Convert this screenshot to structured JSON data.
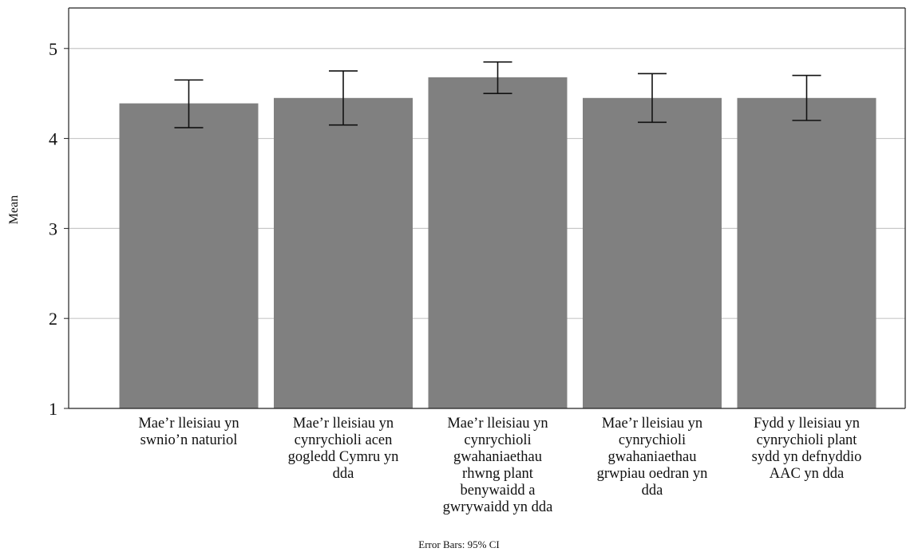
{
  "chart_data": {
    "type": "bar",
    "categories": [
      "Mae’r lleisiau yn\nswnio’n naturiol",
      "Mae’r lleisiau yn\ncynrychioli acen\ngogledd Cymru yn\ndda",
      "Mae’r lleisiau yn\ncynrychioli\ngwahaniaethau\nrhwng plant\nbenywaidd a\ngwrywaidd yn dda",
      "Mae’r lleisiau yn\ncynrychioli\ngwahaniaethau\ngrwpiau oedran yn\ndda",
      "Fydd y lleisiau yn\ncynrychioli plant\nsydd yn defnyddio\nAAC yn dda"
    ],
    "values": [
      4.39,
      4.45,
      4.68,
      4.45,
      4.45
    ],
    "ci_lower": [
      4.12,
      4.15,
      4.5,
      4.18,
      4.2
    ],
    "ci_upper": [
      4.65,
      4.75,
      4.85,
      4.72,
      4.7
    ],
    "ylabel": "Mean",
    "xlabel": "",
    "ylim": [
      1,
      5.45
    ],
    "yticks": [
      1,
      2,
      3,
      4,
      5
    ],
    "grid": true,
    "bar_color": "#808080",
    "footnote": "Error Bars: 95% CI"
  }
}
